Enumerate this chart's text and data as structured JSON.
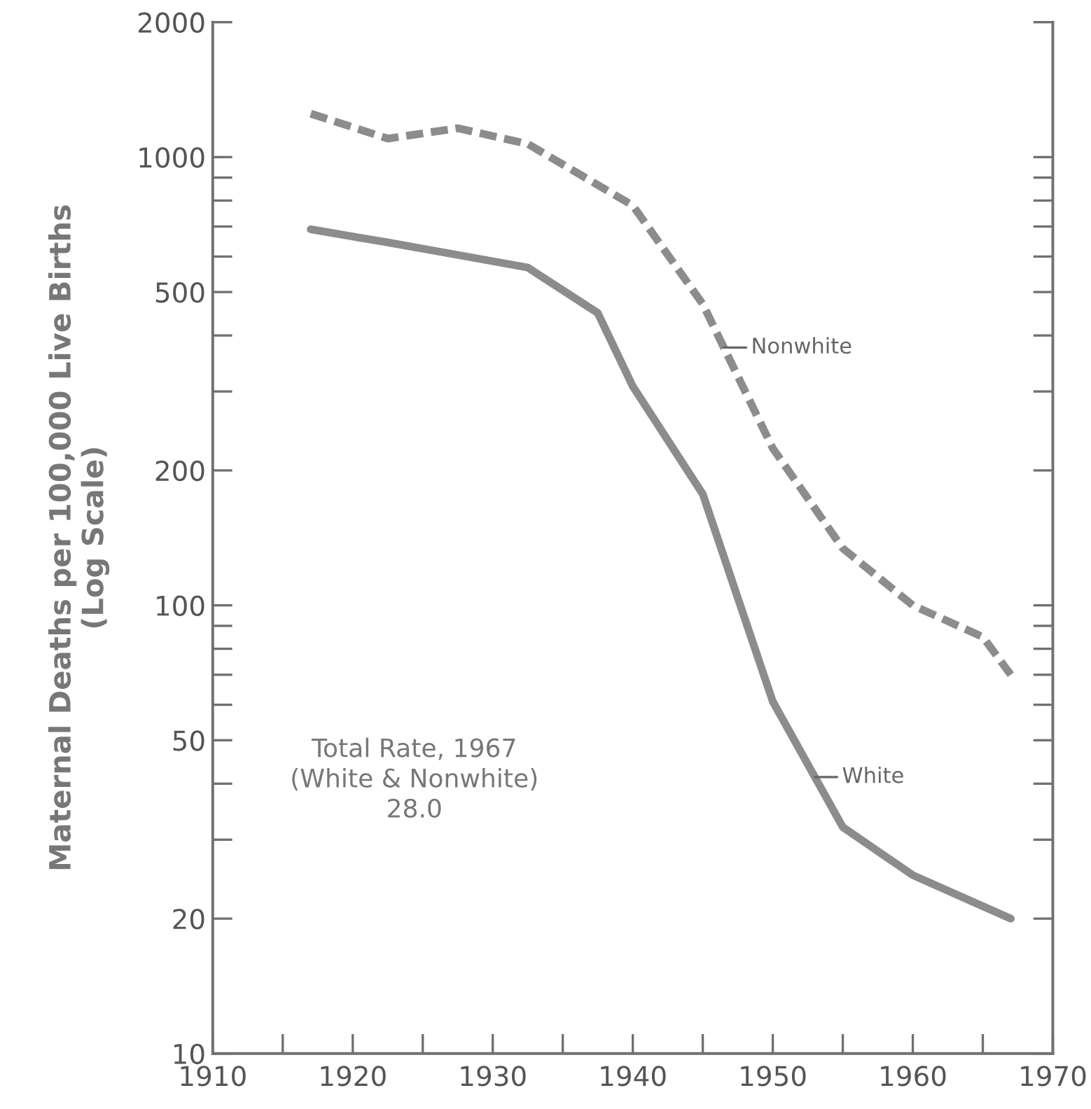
{
  "chart_data": {
    "type": "line",
    "ylabel": "Maternal Deaths per 100,000 Live Births\n(Log Scale)",
    "log": "y",
    "grid": false,
    "legend": false,
    "marker": "none",
    "xlim": [
      1910,
      1970
    ],
    "xticks": [
      1910,
      {
        "value": 1915,
        "label": null
      },
      1920,
      {
        "value": 1925,
        "label": null
      },
      1930,
      {
        "value": 1935,
        "label": null
      },
      1940,
      {
        "value": 1945,
        "label": null
      },
      1950,
      {
        "value": 1955,
        "label": null
      },
      1960,
      {
        "value": 1965,
        "label": null
      },
      1970
    ],
    "ylim": [
      10,
      2000
    ],
    "yticks": [
      10,
      20,
      {
        "value": 30,
        "label": null
      },
      {
        "value": 40,
        "label": null
      },
      50,
      {
        "value": 60,
        "label": null
      },
      {
        "value": 70,
        "label": null
      },
      {
        "value": 80,
        "label": null
      },
      {
        "value": 90,
        "label": null
      },
      100,
      200,
      {
        "value": 300,
        "label": null
      },
      {
        "value": 400,
        "label": null
      },
      500,
      {
        "value": 600,
        "label": null
      },
      {
        "value": 700,
        "label": null
      },
      {
        "value": 800,
        "label": null
      },
      {
        "value": 900,
        "label": null
      },
      1000,
      2000
    ],
    "series": [
      {
        "color": "#8c8c8c",
        "line_style": "dashed",
        "x": [
          1917,
          1922.5,
          1927.5,
          1932.5,
          1940,
          1945,
          1950,
          1955,
          1960,
          1965,
          1967
        ],
        "values": [
          1250,
          1100,
          1160,
          1070,
          780,
          470,
          224,
          134,
          100,
          85,
          70
        ]
      },
      {
        "color": "#8c8c8c",
        "line_style": "solid",
        "x": [
          1917,
          1922.5,
          1927.5,
          1932.5,
          1937.5,
          1940,
          1945,
          1950,
          1955,
          1960,
          1967
        ],
        "values": [
          690,
          645,
          605,
          567,
          449,
          308,
          177,
          61,
          32,
          25,
          20
        ]
      }
    ],
    "annotations": [
      {
        "text": "Nonwhite",
        "x": 1946.5,
        "y": 376
      },
      {
        "text": "White",
        "x": 1953,
        "y": 41.4
      },
      "Total Rate, 1967\n(White & Nonwhite)\n28.0"
    ]
  }
}
